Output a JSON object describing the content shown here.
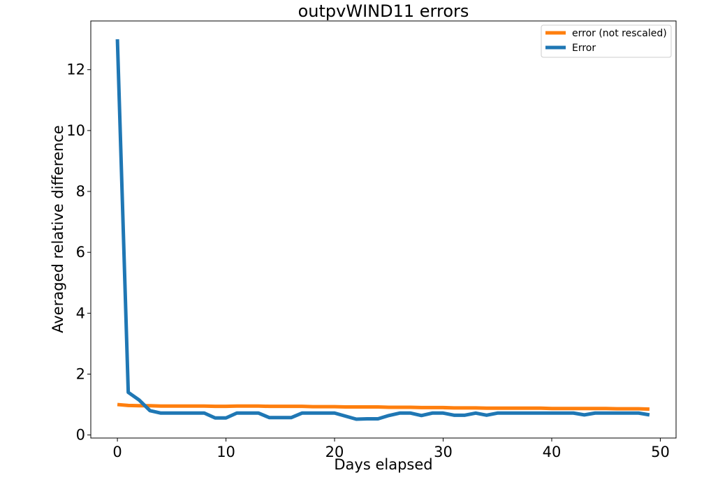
{
  "chart_data": {
    "type": "line",
    "title": "outpvWIND11 errors",
    "xlabel": "Days elapsed",
    "ylabel": "Averaged relative difference",
    "xlim": [
      -2.45,
      51.45
    ],
    "ylim": [
      -0.1,
      13.6
    ],
    "xticks": [
      0,
      10,
      20,
      30,
      40,
      50
    ],
    "yticks": [
      0,
      2,
      4,
      6,
      8,
      10,
      12
    ],
    "xtick_labels": [
      "0",
      "10",
      "20",
      "30",
      "40",
      "50"
    ],
    "ytick_labels": [
      "0",
      "2",
      "4",
      "6",
      "8",
      "10",
      "12"
    ],
    "legend_position": "top-right",
    "grid": false,
    "x": [
      0,
      1,
      2,
      3,
      4,
      5,
      6,
      7,
      8,
      9,
      10,
      11,
      12,
      13,
      14,
      15,
      16,
      17,
      18,
      19,
      20,
      21,
      22,
      23,
      24,
      25,
      26,
      27,
      28,
      29,
      30,
      31,
      32,
      33,
      34,
      35,
      36,
      37,
      38,
      39,
      40,
      41,
      42,
      43,
      44,
      45,
      46,
      47,
      48,
      49
    ],
    "series": [
      {
        "name": "error (not rescaled)",
        "color": "#ff7f0e",
        "values": [
          1.0,
          0.97,
          0.96,
          0.96,
          0.95,
          0.95,
          0.95,
          0.95,
          0.95,
          0.94,
          0.94,
          0.95,
          0.95,
          0.95,
          0.94,
          0.94,
          0.94,
          0.94,
          0.93,
          0.93,
          0.93,
          0.92,
          0.92,
          0.92,
          0.92,
          0.91,
          0.91,
          0.91,
          0.9,
          0.9,
          0.9,
          0.89,
          0.89,
          0.89,
          0.88,
          0.88,
          0.88,
          0.88,
          0.88,
          0.88,
          0.87,
          0.87,
          0.87,
          0.87,
          0.87,
          0.87,
          0.86,
          0.86,
          0.86,
          0.85
        ]
      },
      {
        "name": "Error",
        "color": "#1f77b4",
        "values": [
          13.0,
          1.4,
          1.15,
          0.8,
          0.72,
          0.72,
          0.72,
          0.72,
          0.72,
          0.56,
          0.56,
          0.72,
          0.72,
          0.72,
          0.57,
          0.57,
          0.57,
          0.72,
          0.72,
          0.72,
          0.72,
          0.62,
          0.52,
          0.53,
          0.53,
          0.64,
          0.72,
          0.72,
          0.64,
          0.72,
          0.72,
          0.65,
          0.65,
          0.72,
          0.65,
          0.72,
          0.72,
          0.72,
          0.72,
          0.72,
          0.72,
          0.72,
          0.72,
          0.66,
          0.72,
          0.72,
          0.72,
          0.72,
          0.72,
          0.66
        ]
      }
    ]
  }
}
